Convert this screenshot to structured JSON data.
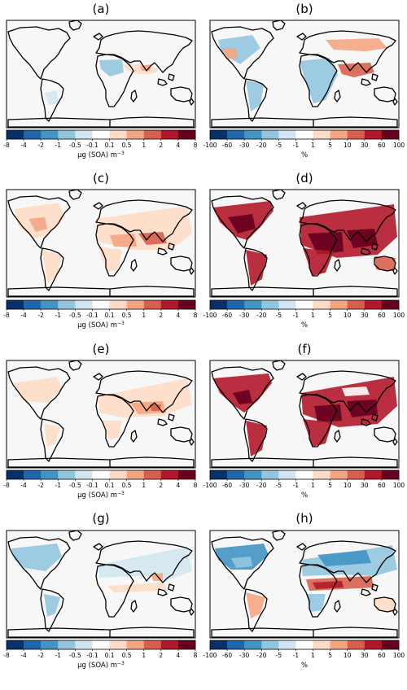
{
  "figure": {
    "panels": [
      {
        "label": "(a)",
        "kind": "abs"
      },
      {
        "label": "(b)",
        "kind": "pct"
      },
      {
        "label": "(c)",
        "kind": "abs"
      },
      {
        "label": "(d)",
        "kind": "pct"
      },
      {
        "label": "(e)",
        "kind": "abs"
      },
      {
        "label": "(f)",
        "kind": "pct"
      },
      {
        "label": "(g)",
        "kind": "abs"
      },
      {
        "label": "(h)",
        "kind": "pct"
      }
    ],
    "colorbars": {
      "abs": {
        "ticks": [
          "-8",
          "-4",
          "-2",
          "-1",
          "-0.5",
          "-0.1",
          "0.1",
          "0.5",
          "1",
          "2",
          "4",
          "8"
        ],
        "label_prefix": "μg (SOA) m",
        "label_exponent": "−3"
      },
      "pct": {
        "ticks": [
          "-100",
          "-60",
          "-30",
          "-20",
          "-5",
          "-1",
          "1",
          "5",
          "10",
          "30",
          "60",
          "100"
        ],
        "label": "%"
      }
    },
    "palette": [
      "#08306b",
      "#2166ac",
      "#4393c3",
      "#92c5de",
      "#d1e5f0",
      "#ffffff",
      "#fddbc7",
      "#f4a582",
      "#d6604d",
      "#b2182b",
      "#67001f"
    ],
    "ocean_color": "#f7f7f7"
  }
}
